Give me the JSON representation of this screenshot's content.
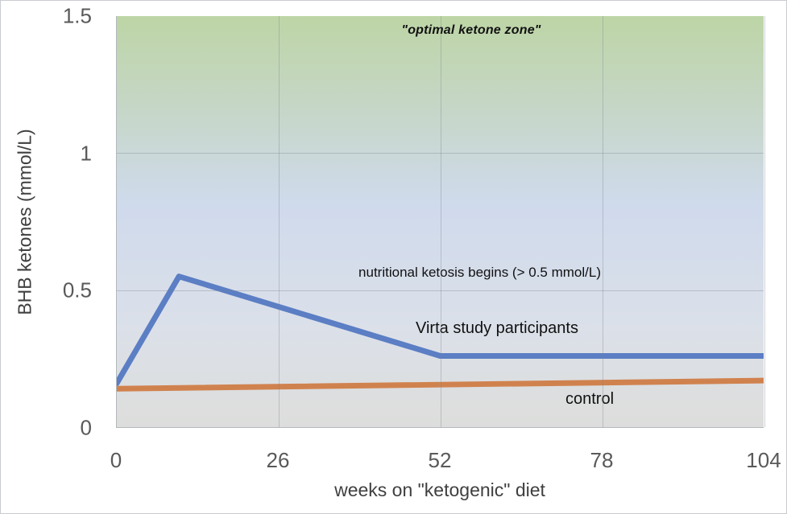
{
  "chart_data": {
    "type": "line",
    "title": "",
    "xlabel": "weeks on \"ketogenic\" diet",
    "ylabel": "BHB ketones (mmol/L)",
    "xlim": [
      0,
      104
    ],
    "ylim": [
      0,
      1.5
    ],
    "x_ticks": [
      0,
      26,
      52,
      78,
      104
    ],
    "x_tick_labels": [
      "0",
      "26",
      "52",
      "78",
      "104"
    ],
    "y_ticks": [
      0,
      0.5,
      1,
      1.5
    ],
    "y_tick_labels": [
      "0",
      "0.5",
      "1",
      "1.5"
    ],
    "grid": true,
    "legend_position": "inline-labels",
    "series": [
      {
        "name": "Virta study participants",
        "color": "#5b7ec4",
        "x": [
          0,
          10,
          52,
          104
        ],
        "values": [
          0.16,
          0.55,
          0.26,
          0.26
        ]
      },
      {
        "name": "control",
        "color": "#d0824e",
        "x": [
          0,
          104
        ],
        "values": [
          0.14,
          0.17
        ]
      }
    ],
    "annotations": [
      {
        "id": "optimal_zone",
        "text": "\"optimal ketone zone\""
      },
      {
        "id": "ketosis_threshold",
        "text": "nutritional ketosis begins (> 0.5 mmol/L)"
      },
      {
        "id": "virta_label",
        "text": "Virta study participants"
      },
      {
        "id": "control_label",
        "text": "control"
      }
    ],
    "background_zones": {
      "top_color": "#bdd5a6",
      "middle_color": "#cfdaec",
      "bottom_color": "#dcdddc"
    },
    "tick_label_color": "#595959",
    "axis_title_color": "#3f3f3f"
  }
}
